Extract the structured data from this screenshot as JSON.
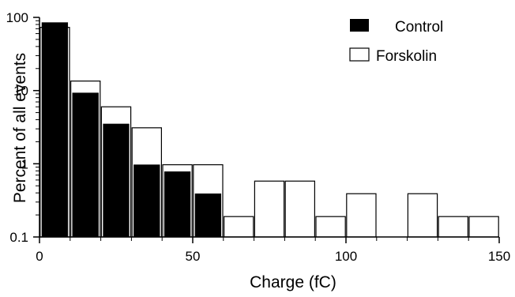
{
  "chart_data": {
    "type": "bar",
    "title": "",
    "xlabel": "Charge (fC)",
    "ylabel": "Percent of all events",
    "yscale": "log",
    "xlim": [
      0,
      150
    ],
    "ylim": [
      0.1,
      100
    ],
    "x_ticks": [
      "0",
      "50",
      "100",
      "150"
    ],
    "y_ticks": [
      "0.1",
      "1",
      "10",
      "100"
    ],
    "grid": false,
    "legend_position": "top-right",
    "bin_width": 10,
    "categories": [
      5,
      15,
      25,
      35,
      45,
      55,
      65,
      75,
      85,
      95,
      105,
      115,
      125,
      135,
      145
    ],
    "series": [
      {
        "name": "Control",
        "color": "#000000",
        "fill": "solid",
        "values": [
          85,
          9.3,
          3.5,
          0.97,
          0.78,
          0.39,
          null,
          null,
          null,
          null,
          null,
          null,
          null,
          null,
          null
        ]
      },
      {
        "name": "Forskolin",
        "color": "#ffffff",
        "fill": "open",
        "values": [
          73,
          13.5,
          6.0,
          3.1,
          0.97,
          0.97,
          0.19,
          0.58,
          0.58,
          0.19,
          0.39,
          null,
          0.39,
          0.19,
          0.19
        ]
      }
    ]
  }
}
